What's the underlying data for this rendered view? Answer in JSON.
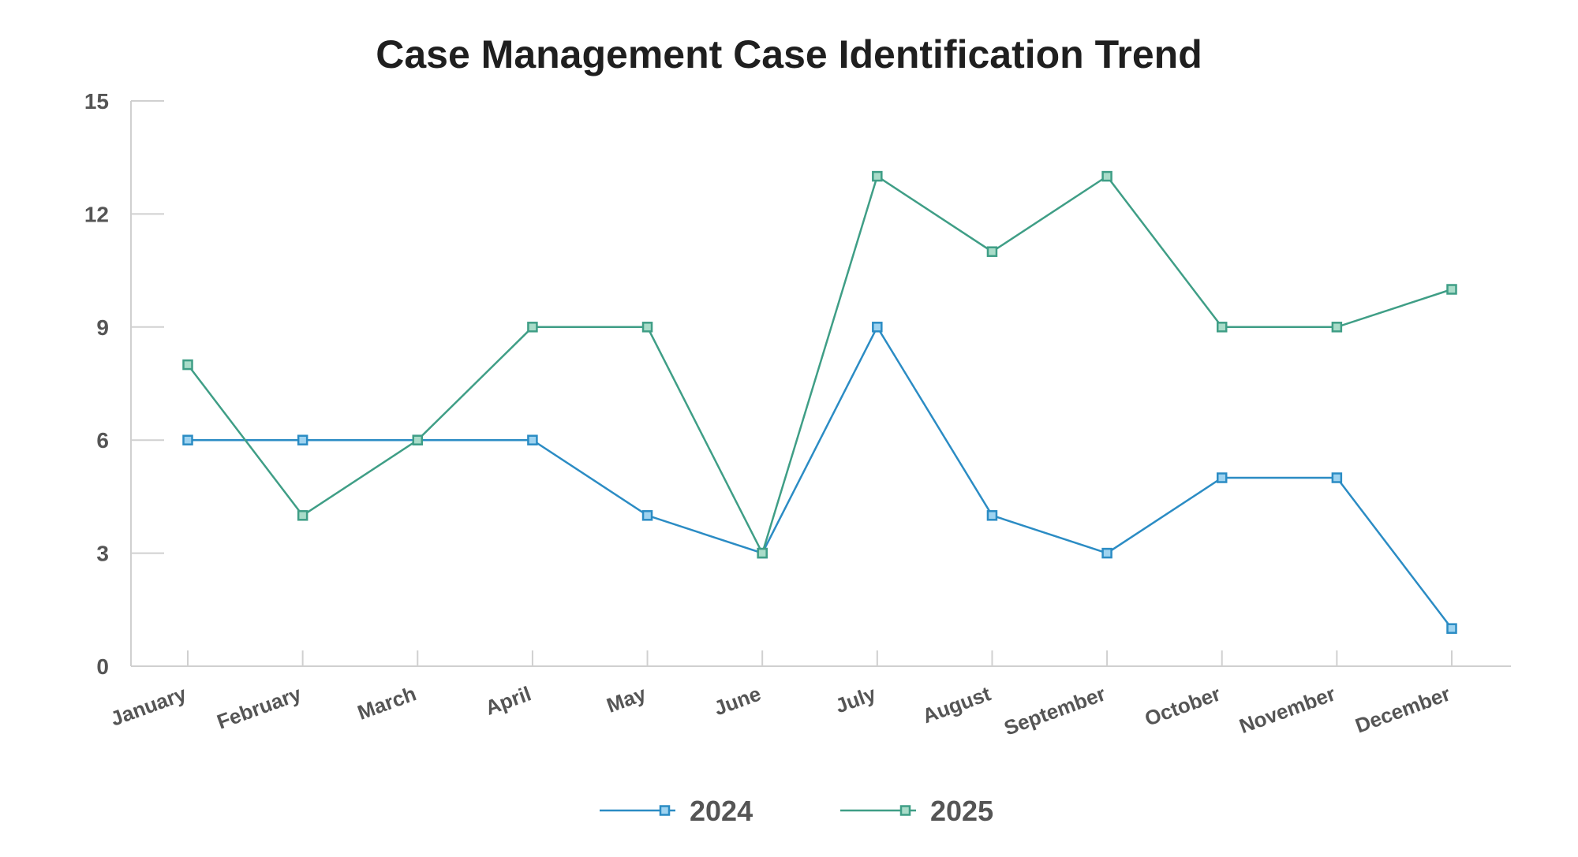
{
  "chart_data": {
    "type": "line",
    "title": "Case Management Case Identification Trend",
    "xlabel": "",
    "ylabel": "",
    "categories": [
      "January",
      "February",
      "March",
      "April",
      "May",
      "June",
      "July",
      "August",
      "September",
      "October",
      "November",
      "December"
    ],
    "ylim": [
      0,
      15
    ],
    "yticks": [
      0,
      3,
      6,
      9,
      12,
      15
    ],
    "grid": false,
    "legend": "bottom",
    "series": [
      {
        "name": "2024",
        "color": "#2b8cc4",
        "marker_fill": "#9ed3f0",
        "values": [
          6,
          6,
          6,
          6,
          4,
          3,
          9,
          4,
          3,
          5,
          5,
          1
        ]
      },
      {
        "name": "2025",
        "color": "#3f9e86",
        "marker_fill": "#a9dcc9",
        "values": [
          8,
          4,
          6,
          9,
          9,
          3,
          13,
          11,
          13,
          9,
          9,
          10
        ]
      }
    ]
  }
}
